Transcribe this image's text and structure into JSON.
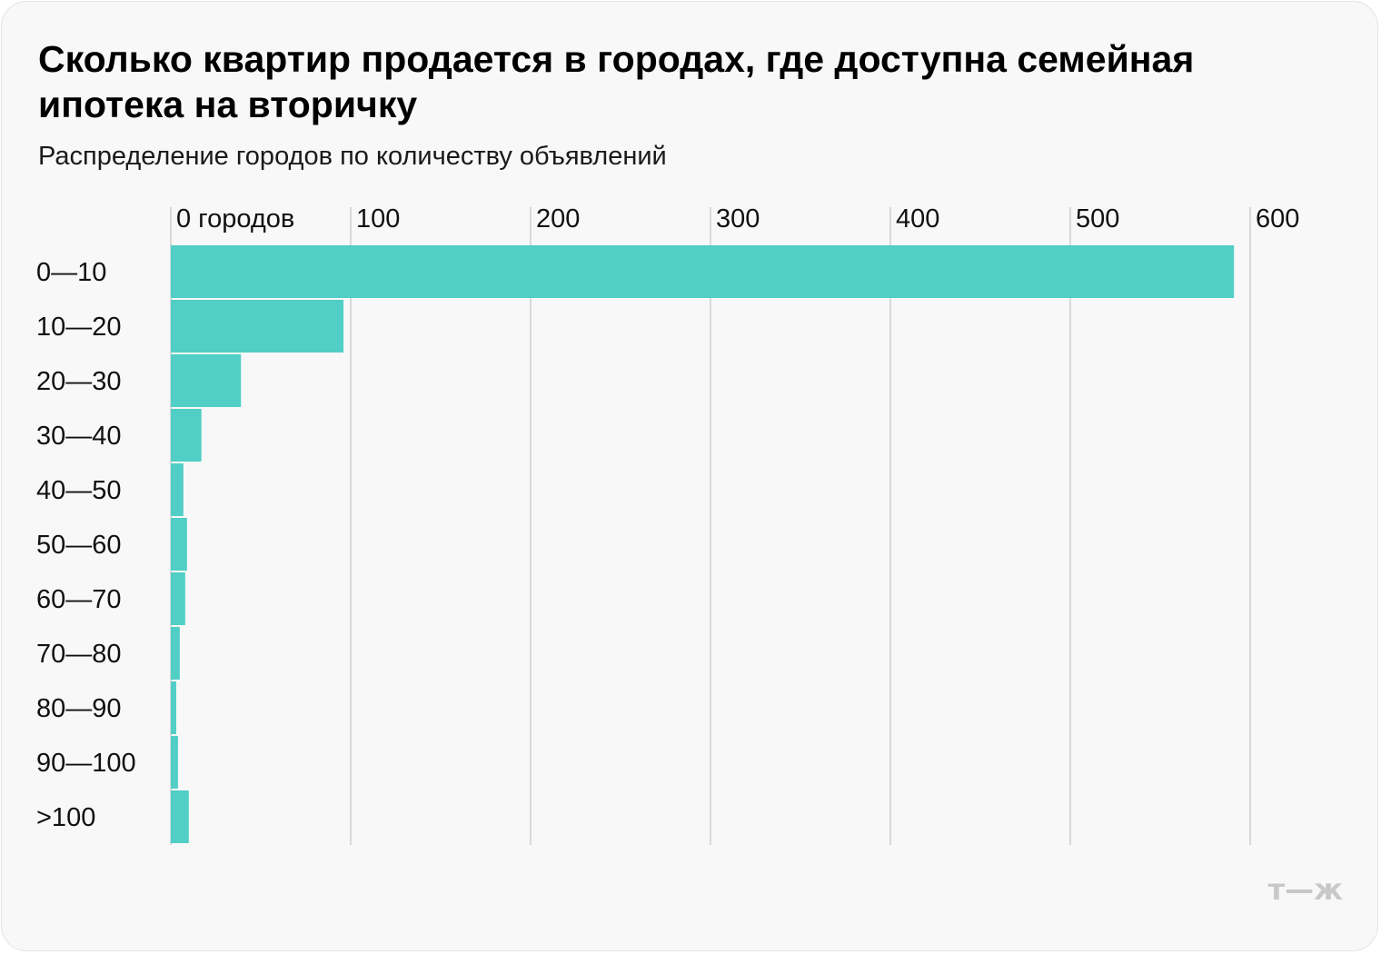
{
  "title": "Сколько квартир продается в городах, где доступна семейная ипотека на вторичку",
  "subtitle": "Распределение городов по количеству объявлений",
  "logo_text": "т—ж",
  "colors": {
    "bar": "#4ecdc4",
    "grid": "#d9d9d9",
    "background": "#f8f8f8",
    "logo": "#c8c8c8"
  },
  "chart_data": {
    "type": "bar",
    "orientation": "horizontal",
    "categories": [
      "0—10",
      "10—20",
      "20—30",
      "30—40",
      "40—50",
      "50—60",
      "60—70",
      "70—80",
      "80—90",
      "90—100",
      ">100"
    ],
    "values": [
      591,
      96,
      39,
      17,
      7,
      9,
      8,
      5,
      3,
      4,
      10
    ],
    "xlim": [
      0,
      600
    ],
    "ticks": [
      0,
      100,
      200,
      300,
      400,
      500,
      600
    ],
    "tick_labels": [
      "0 городов",
      "100",
      "200",
      "300",
      "400",
      "500",
      "600"
    ],
    "axis_position": "top",
    "grid": true,
    "title": "Сколько квартир продается в городах, где доступна семейная ипотека на вторичку",
    "xlabel": "",
    "ylabel": ""
  }
}
